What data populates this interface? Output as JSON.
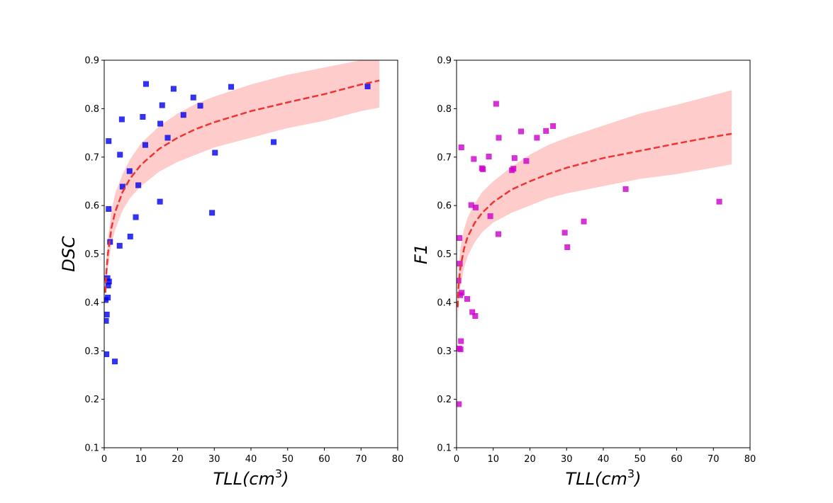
{
  "chart_data": [
    {
      "type": "scatter",
      "xlabel": "TLL(cm",
      "xlabel_sup": "3",
      "xlabel_tail": ")",
      "ylabel": "DSC",
      "xlim": [
        0,
        80
      ],
      "ylim": [
        0.1,
        0.9
      ],
      "xticks": [
        "0",
        "10",
        "20",
        "30",
        "40",
        "50",
        "60",
        "70",
        "80"
      ],
      "yticks": [
        "0.1",
        "0.2",
        "0.3",
        "0.4",
        "0.5",
        "0.6",
        "0.7",
        "0.8",
        "0.9"
      ],
      "marker_color": "#0000ee",
      "fit_color": "#ee3333",
      "band_color": "#ffcccc",
      "points": [
        [
          0.4,
          0.405
        ],
        [
          0.5,
          0.362
        ],
        [
          0.6,
          0.293
        ],
        [
          0.7,
          0.375
        ],
        [
          0.9,
          0.45
        ],
        [
          1.0,
          0.41
        ],
        [
          1.1,
          0.435
        ],
        [
          1.2,
          0.733
        ],
        [
          1.2,
          0.593
        ],
        [
          1.3,
          0.443
        ],
        [
          1.6,
          0.525
        ],
        [
          2.9,
          0.278
        ],
        [
          4.2,
          0.517
        ],
        [
          4.3,
          0.705
        ],
        [
          4.8,
          0.778
        ],
        [
          5.0,
          0.639
        ],
        [
          6.9,
          0.671
        ],
        [
          7.1,
          0.536
        ],
        [
          8.6,
          0.576
        ],
        [
          9.3,
          0.642
        ],
        [
          10.5,
          0.783
        ],
        [
          11.2,
          0.725
        ],
        [
          11.4,
          0.851
        ],
        [
          15.2,
          0.608
        ],
        [
          15.3,
          0.769
        ],
        [
          15.8,
          0.807
        ],
        [
          17.3,
          0.74
        ],
        [
          18.9,
          0.841
        ],
        [
          21.6,
          0.787
        ],
        [
          24.3,
          0.823
        ],
        [
          26.2,
          0.806
        ],
        [
          29.4,
          0.585
        ],
        [
          30.2,
          0.709
        ],
        [
          34.6,
          0.845
        ],
        [
          46.2,
          0.731
        ],
        [
          71.8,
          0.846
        ]
      ],
      "fit": {
        "x": [
          0.3,
          0.5,
          1,
          2,
          3,
          5,
          7,
          10,
          15,
          20,
          25,
          30,
          40,
          50,
          60,
          70,
          75
        ],
        "y": [
          0.42,
          0.455,
          0.5,
          0.555,
          0.587,
          0.628,
          0.655,
          0.684,
          0.717,
          0.74,
          0.758,
          0.772,
          0.795,
          0.813,
          0.83,
          0.85,
          0.858
        ],
        "lower": [
          0.4,
          0.43,
          0.47,
          0.52,
          0.55,
          0.59,
          0.615,
          0.64,
          0.67,
          0.69,
          0.705,
          0.72,
          0.74,
          0.76,
          0.775,
          0.795,
          0.802
        ],
        "upper": [
          0.44,
          0.48,
          0.53,
          0.59,
          0.625,
          0.665,
          0.695,
          0.728,
          0.764,
          0.79,
          0.81,
          0.825,
          0.85,
          0.87,
          0.885,
          0.9,
          0.905
        ]
      }
    },
    {
      "type": "scatter",
      "xlabel": "TLL(cm",
      "xlabel_sup": "3",
      "xlabel_tail": ")",
      "ylabel": "F1",
      "xlim": [
        0,
        80
      ],
      "ylim": [
        0.1,
        0.9
      ],
      "xticks": [
        "0",
        "10",
        "20",
        "30",
        "40",
        "50",
        "60",
        "70",
        "80"
      ],
      "yticks": [
        "0.1",
        "0.2",
        "0.3",
        "0.4",
        "0.5",
        "0.6",
        "0.7",
        "0.8",
        "0.9"
      ],
      "marker_color": "#cc00cc",
      "fit_color": "#ee3333",
      "band_color": "#ffcccc",
      "points": [
        [
          0.5,
          0.445
        ],
        [
          0.6,
          0.19
        ],
        [
          0.7,
          0.305
        ],
        [
          0.8,
          0.533
        ],
        [
          0.9,
          0.48
        ],
        [
          1.0,
          0.415
        ],
        [
          1.1,
          0.303
        ],
        [
          1.2,
          0.32
        ],
        [
          1.3,
          0.72
        ],
        [
          1.4,
          0.42
        ],
        [
          2.9,
          0.407
        ],
        [
          4.0,
          0.601
        ],
        [
          4.3,
          0.38
        ],
        [
          4.7,
          0.696
        ],
        [
          5.1,
          0.372
        ],
        [
          5.2,
          0.596
        ],
        [
          6.9,
          0.677
        ],
        [
          7.2,
          0.675
        ],
        [
          8.8,
          0.701
        ],
        [
          9.2,
          0.578
        ],
        [
          10.8,
          0.81
        ],
        [
          11.4,
          0.541
        ],
        [
          11.5,
          0.74
        ],
        [
          15.1,
          0.673
        ],
        [
          15.5,
          0.676
        ],
        [
          15.8,
          0.698
        ],
        [
          17.6,
          0.753
        ],
        [
          19.0,
          0.692
        ],
        [
          21.9,
          0.74
        ],
        [
          24.4,
          0.754
        ],
        [
          26.3,
          0.764
        ],
        [
          29.5,
          0.544
        ],
        [
          30.2,
          0.514
        ],
        [
          34.7,
          0.567
        ],
        [
          46.1,
          0.634
        ],
        [
          71.6,
          0.608
        ]
      ],
      "fit": {
        "x": [
          0.3,
          0.5,
          1,
          2,
          3,
          5,
          7,
          10,
          15,
          20,
          25,
          30,
          40,
          50,
          60,
          70,
          75
        ],
        "y": [
          0.39,
          0.43,
          0.47,
          0.51,
          0.535,
          0.565,
          0.585,
          0.607,
          0.633,
          0.65,
          0.665,
          0.678,
          0.698,
          0.713,
          0.728,
          0.742,
          0.748
        ],
        "lower": [
          0.34,
          0.39,
          0.43,
          0.47,
          0.495,
          0.525,
          0.545,
          0.565,
          0.585,
          0.6,
          0.615,
          0.625,
          0.64,
          0.655,
          0.665,
          0.678,
          0.685
        ],
        "upper": [
          0.44,
          0.47,
          0.51,
          0.55,
          0.575,
          0.605,
          0.628,
          0.65,
          0.68,
          0.705,
          0.725,
          0.74,
          0.765,
          0.79,
          0.808,
          0.828,
          0.838
        ]
      }
    }
  ]
}
